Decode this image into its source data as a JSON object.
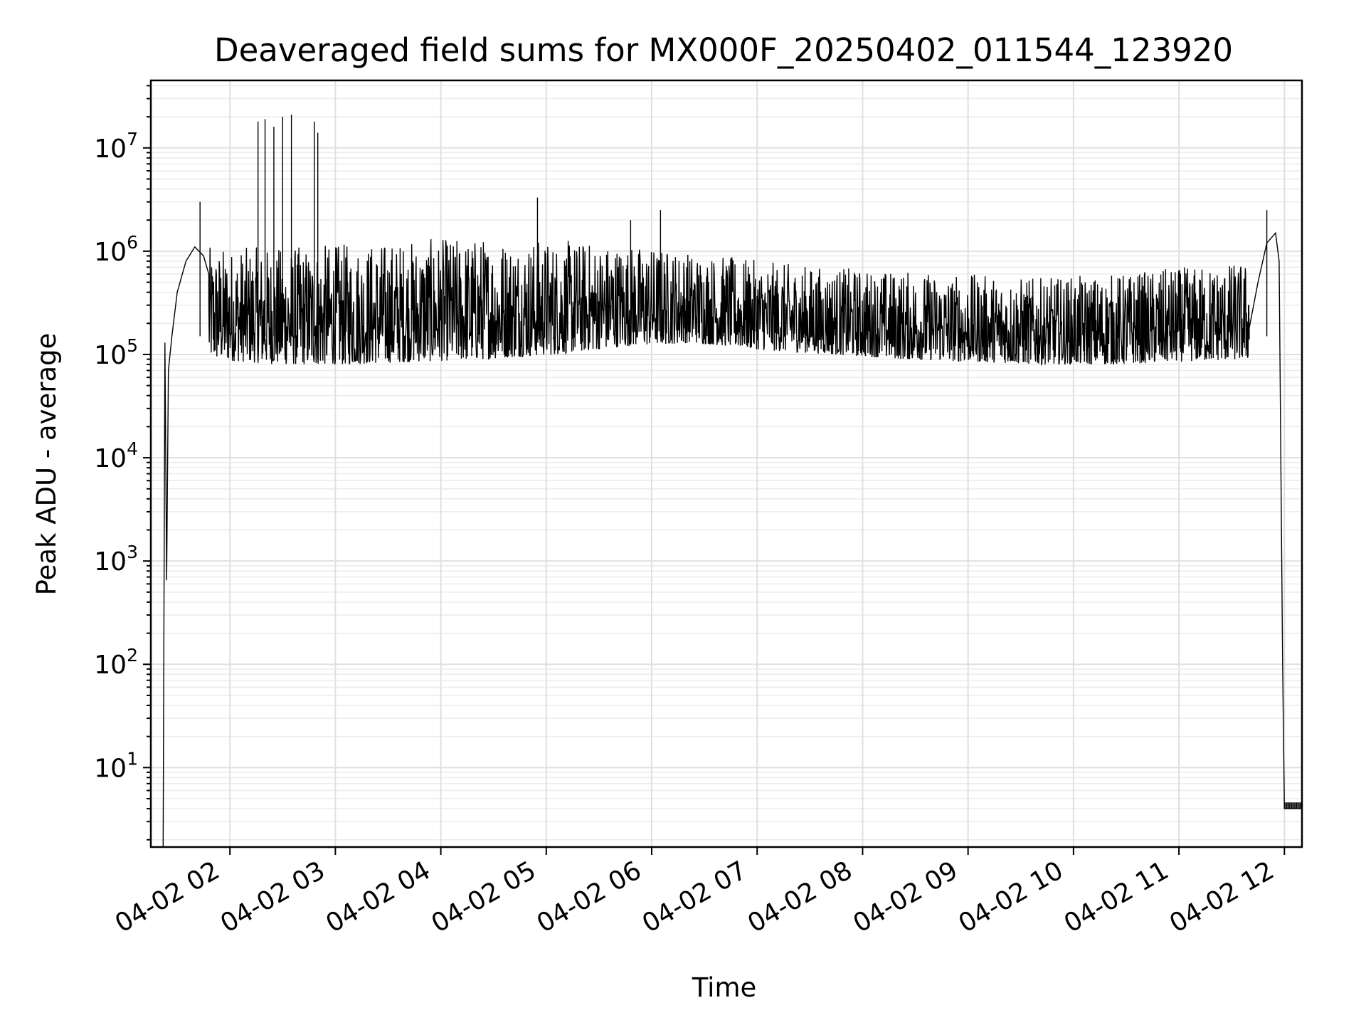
{
  "chart_data": {
    "type": "line",
    "title": "Deaveraged field sums for MX000F_20250402_011544_123920",
    "xlabel": "Time",
    "ylabel": "Peak ADU - average",
    "yscale": "log",
    "grid": true,
    "x_start": "04-02 01:15",
    "x_end": "04-02 12:10",
    "x_tick_labels": [
      "04-02 02",
      "04-02 03",
      "04-02 04",
      "04-02 05",
      "04-02 06",
      "04-02 07",
      "04-02 08",
      "04-02 09",
      "04-02 10",
      "04-02 11",
      "04-02 12"
    ],
    "y_ticks": [
      {
        "base": "10",
        "exp": "1"
      },
      {
        "base": "10",
        "exp": "2"
      },
      {
        "base": "10",
        "exp": "3"
      },
      {
        "base": "10",
        "exp": "4"
      },
      {
        "base": "10",
        "exp": "5"
      },
      {
        "base": "10",
        "exp": "6"
      },
      {
        "base": "10",
        "exp": "7"
      }
    ],
    "ylim": [
      1.7,
      45000000
    ],
    "series": [
      {
        "color": "#000000",
        "x": [
          "04-02 01:22",
          "04-02 01:23",
          "04-02 01:24",
          "04-02 01:25",
          "04-02 01:27",
          "04-02 01:30",
          "04-02 01:35",
          "04-02 01:40",
          "04-02 01:45",
          "04-02 01:48",
          "04-02 02:00",
          "04-02 02:15",
          "04-02 02:30",
          "04-02 03:00",
          "04-02 03:30",
          "04-02 04:00",
          "04-02 04:30",
          "04-02 05:00",
          "04-02 05:30",
          "04-02 06:00",
          "04-02 06:30",
          "04-02 07:00",
          "04-02 07:30",
          "04-02 08:00",
          "04-02 08:30",
          "04-02 09:00",
          "04-02 09:30",
          "04-02 10:00",
          "04-02 10:30",
          "04-02 11:00",
          "04-02 11:30",
          "04-02 11:40",
          "04-02 11:45",
          "04-02 11:50",
          "04-02 11:55",
          "04-02 11:57",
          "04-02 11:59",
          "04-02 12:00",
          "04-02 12:10"
        ],
        "y": [
          1.7,
          130000,
          650,
          70000,
          150000,
          400000,
          800000,
          1100000,
          900000,
          600000,
          200000,
          150000,
          160000,
          200000,
          180000,
          150000,
          180000,
          250000,
          350000,
          450000,
          420000,
          380000,
          300000,
          250000,
          230000,
          200000,
          170000,
          150000,
          140000,
          140000,
          140000,
          180000,
          500000,
          1200000,
          1500000,
          800000,
          100,
          4,
          4
        ],
        "band_low": [
          90000,
          80000,
          80000,
          85000,
          90000,
          100000,
          120000,
          130000,
          110000,
          100000,
          90000,
          85000,
          80000,
          80000,
          85000,
          90000
        ],
        "band_high": [
          1100000,
          1100000,
          1200000,
          1300000,
          1400000,
          1300000,
          1200000,
          1000000,
          800000,
          700000,
          650000,
          600000,
          550000,
          600000,
          700000,
          800000
        ],
        "spikes": [
          {
            "x": "04-02 02:16",
            "y": 18000000
          },
          {
            "x": "04-02 02:20",
            "y": 19000000
          },
          {
            "x": "04-02 02:25",
            "y": 16000000
          },
          {
            "x": "04-02 02:30",
            "y": 20000000
          },
          {
            "x": "04-02 02:35",
            "y": 21000000
          },
          {
            "x": "04-02 02:48",
            "y": 18000000
          },
          {
            "x": "04-02 02:50",
            "y": 14000000
          },
          {
            "x": "04-02 01:43",
            "y": 3000000
          },
          {
            "x": "04-02 04:55",
            "y": 3300000
          },
          {
            "x": "04-02 05:48",
            "y": 2000000
          },
          {
            "x": "04-02 06:05",
            "y": 2500000
          },
          {
            "x": "04-02 11:50",
            "y": 2500000
          }
        ]
      }
    ]
  }
}
